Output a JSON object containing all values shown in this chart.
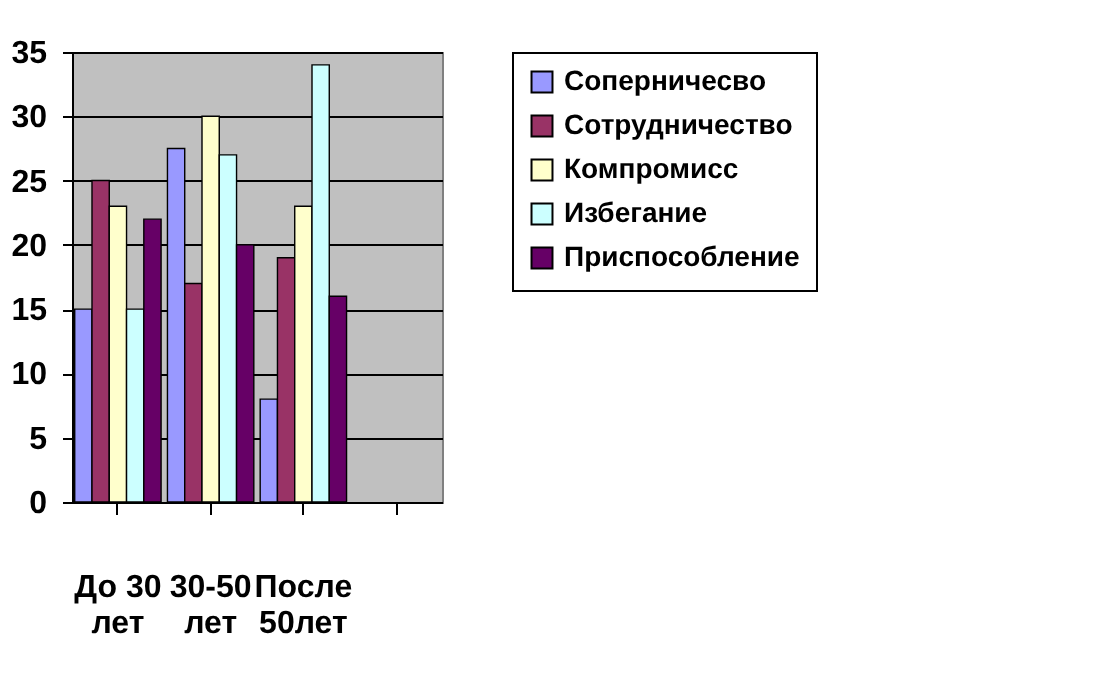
{
  "chart_data": {
    "type": "bar",
    "categories": [
      "До 30 лет",
      "30-50 лет",
      "После 50лет",
      null
    ],
    "series": [
      {
        "name": "Соперничесво",
        "color": "#9999ff",
        "values": [
          15,
          27.5,
          8,
          null
        ]
      },
      {
        "name": "Сотрудничество",
        "color": "#993366",
        "values": [
          25,
          17,
          19,
          null
        ]
      },
      {
        "name": "Компромисс",
        "color": "#ffffcc",
        "values": [
          23,
          30,
          23,
          null
        ]
      },
      {
        "name": "Избегание",
        "color": "#ccffff",
        "values": [
          15,
          27,
          34,
          null
        ]
      },
      {
        "name": "Приспособление",
        "color": "#660066",
        "values": [
          22,
          20,
          16,
          null
        ]
      }
    ],
    "ylim": [
      0,
      35
    ],
    "yticks": [
      0,
      5,
      10,
      15,
      20,
      25,
      30,
      35
    ],
    "grid": "y",
    "legend": "right"
  }
}
